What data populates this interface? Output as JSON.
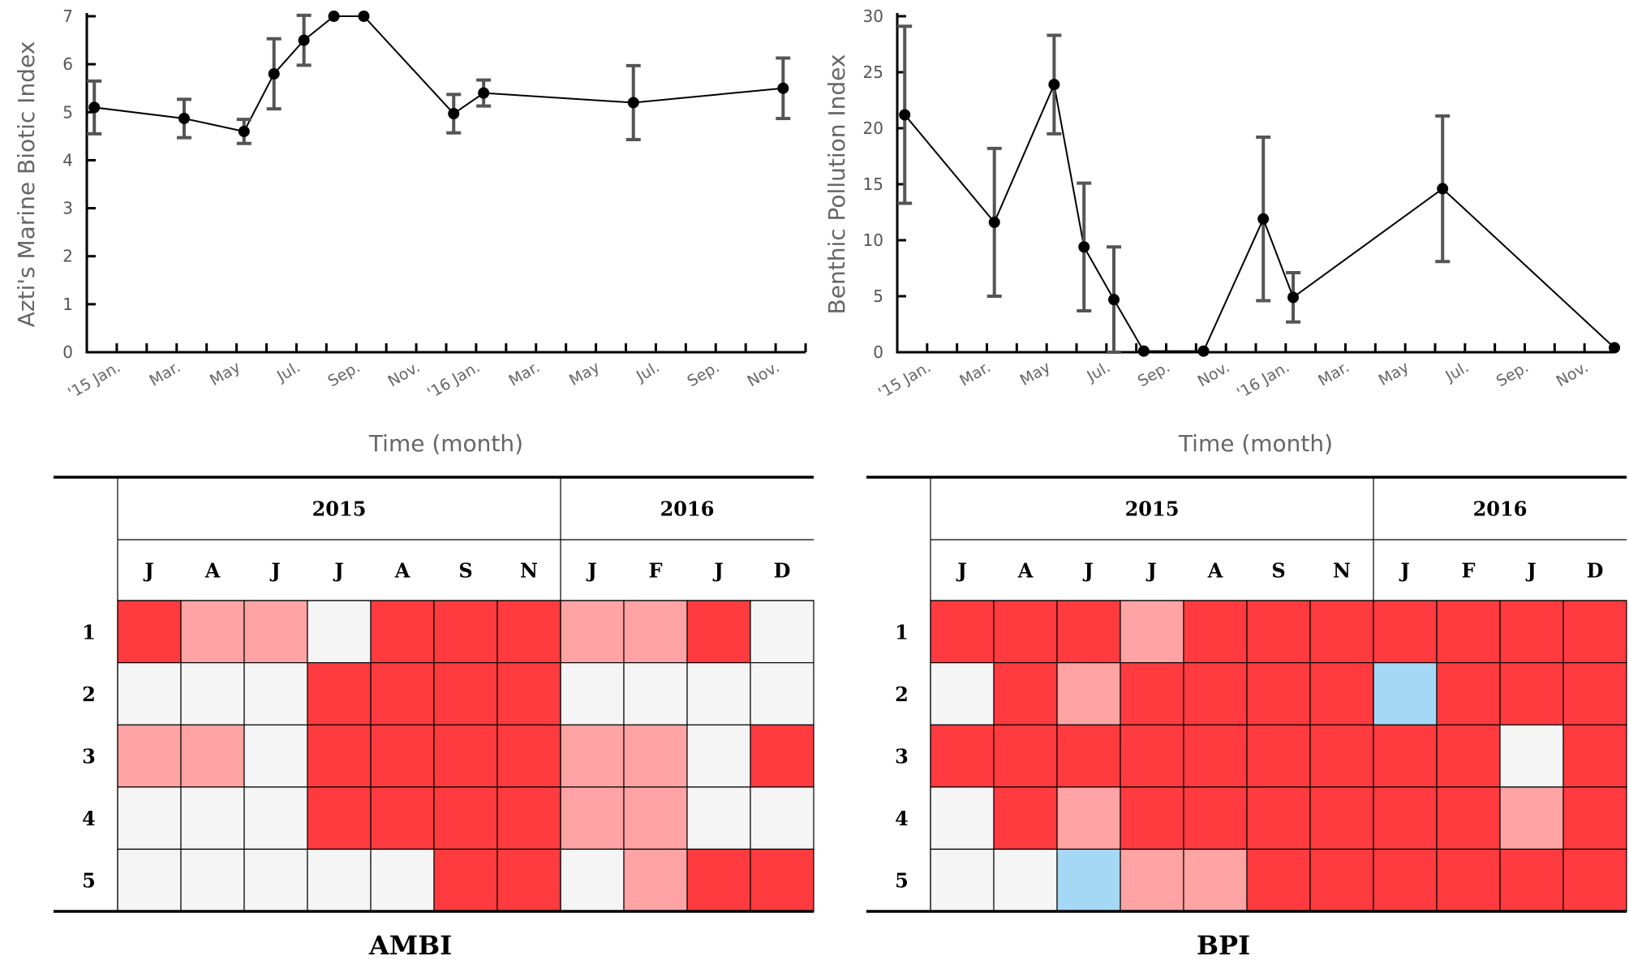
{
  "colors": {
    "high": "#ff3b3f",
    "medium": "#ffa3a4",
    "low": "#f5f5f5",
    "blue": "#a5d8f5"
  },
  "chart_data": [
    {
      "type": "line",
      "ylabel": "Azti's Marine Biotic Index",
      "xlabel": "Time (month)",
      "ylim": [
        0,
        7
      ],
      "yticks": [
        0,
        1,
        2,
        3,
        4,
        5,
        6,
        7
      ],
      "xlim": [
        0,
        24
      ],
      "xtick_labels": [
        "'15 Jan.",
        "Mar.",
        "May",
        "Jul.",
        "Sep.",
        "Nov.",
        "'16 Jan.",
        "Mar.",
        "May",
        "Jul.",
        "Sep.",
        "Nov."
      ],
      "series": [
        {
          "x": [
            0.25,
            3.25,
            5.25,
            6.25,
            7.25,
            8.25,
            9.25,
            12.25,
            13.25,
            18.25,
            23.25
          ],
          "y": [
            5.1,
            4.87,
            4.6,
            5.8,
            6.5,
            7.0,
            7.0,
            4.97,
            5.4,
            5.2,
            5.5
          ],
          "err": [
            0.55,
            0.4,
            0.25,
            0.73,
            0.52,
            0.0,
            0.0,
            0.4,
            0.27,
            0.77,
            0.63
          ]
        }
      ]
    },
    {
      "type": "line",
      "ylabel": "Benthic Pollution Index",
      "xlabel": "Time (month)",
      "ylim": [
        0,
        30
      ],
      "yticks": [
        0,
        5,
        10,
        15,
        20,
        25,
        30
      ],
      "xlim": [
        0,
        24
      ],
      "xtick_labels": [
        "'15 Jan.",
        "Mar.",
        "May",
        "Jul.",
        "Sep.",
        "Nov.",
        "'16 Jan.",
        "Mar.",
        "May",
        "Jul.",
        "Sep.",
        "Nov."
      ],
      "series": [
        {
          "x": [
            0.25,
            3.25,
            5.25,
            6.25,
            7.25,
            8.25,
            10.25,
            12.25,
            13.25,
            18.25,
            24.0
          ],
          "y": [
            21.2,
            11.6,
            23.9,
            9.4,
            4.7,
            0.1,
            0.1,
            11.9,
            4.9,
            14.6,
            0.4
          ],
          "err": [
            7.9,
            6.6,
            4.4,
            5.7,
            4.7,
            0.0,
            0.0,
            7.3,
            2.2,
            6.5,
            0.0
          ]
        }
      ]
    },
    {
      "type": "table",
      "title": "AMBI",
      "years": [
        {
          "label": "2015",
          "span": 7
        },
        {
          "label": "2016",
          "span": 4
        }
      ],
      "months": [
        "J",
        "A",
        "J",
        "J",
        "A",
        "S",
        "N",
        "J",
        "F",
        "J",
        "D"
      ],
      "rows": [
        "1",
        "2",
        "3",
        "4",
        "5"
      ],
      "cells": [
        [
          2,
          1,
          1,
          0,
          2,
          2,
          2,
          1,
          1,
          2,
          0
        ],
        [
          0,
          0,
          0,
          2,
          2,
          2,
          2,
          0,
          0,
          0,
          0
        ],
        [
          1,
          1,
          0,
          2,
          2,
          2,
          2,
          1,
          1,
          0,
          2
        ],
        [
          0,
          0,
          0,
          2,
          2,
          2,
          2,
          1,
          1,
          0,
          0
        ],
        [
          0,
          0,
          0,
          0,
          0,
          2,
          2,
          0,
          1,
          2,
          2
        ]
      ]
    },
    {
      "type": "table",
      "title": "BPI",
      "years": [
        {
          "label": "2015",
          "span": 7
        },
        {
          "label": "2016",
          "span": 4
        }
      ],
      "months": [
        "J",
        "A",
        "J",
        "J",
        "A",
        "S",
        "N",
        "J",
        "F",
        "J",
        "D"
      ],
      "rows": [
        "1",
        "2",
        "3",
        "4",
        "5"
      ],
      "cells": [
        [
          2,
          2,
          2,
          1,
          2,
          2,
          2,
          2,
          2,
          2,
          2
        ],
        [
          0,
          2,
          1,
          2,
          2,
          2,
          2,
          3,
          2,
          2,
          2
        ],
        [
          2,
          2,
          2,
          2,
          2,
          2,
          2,
          2,
          2,
          0,
          2
        ],
        [
          0,
          2,
          1,
          2,
          2,
          2,
          2,
          2,
          2,
          1,
          2
        ],
        [
          0,
          0,
          3,
          1,
          1,
          2,
          2,
          2,
          2,
          2,
          2
        ]
      ]
    }
  ]
}
